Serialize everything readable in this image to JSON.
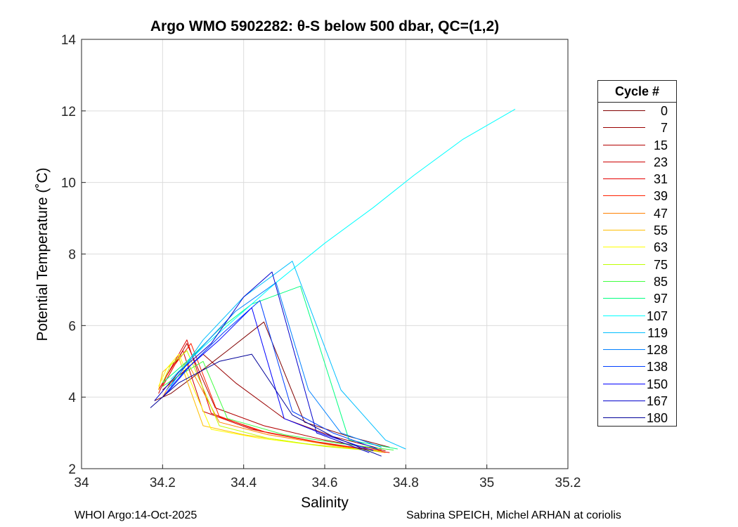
{
  "chart_data": {
    "type": "line",
    "title": "Argo WMO 5902282: θ-S below 500 dbar,  QC=(1,2)",
    "xlabel": "Salinity",
    "ylabel": "Potential Temperature (˚C)",
    "xlim": [
      34,
      35.2
    ],
    "ylim": [
      2,
      14
    ],
    "xticks": [
      34,
      34.2,
      34.4,
      34.6,
      34.8,
      35,
      35.2
    ],
    "xtick_labels": [
      "34",
      "34.2",
      "34.4",
      "34.6",
      "34.8",
      "35",
      "35.2"
    ],
    "yticks": [
      2,
      4,
      6,
      8,
      10,
      12,
      14
    ],
    "ytick_labels": [
      "2",
      "4",
      "6",
      "8",
      "10",
      "12",
      "14"
    ],
    "grid": true,
    "legend_position": "right",
    "legend_title": "Cycle #",
    "series": [
      {
        "name": "0",
        "color": "#800000",
        "x": [
          34.18,
          34.22,
          34.28,
          34.36,
          34.45,
          34.55,
          34.66,
          34.76
        ],
        "y": [
          3.9,
          4.1,
          4.6,
          5.3,
          6.1,
          3.3,
          2.9,
          2.6
        ]
      },
      {
        "name": "7",
        "color": "#990000",
        "x": [
          34.2,
          34.24,
          34.3,
          34.38,
          34.5,
          34.62,
          34.74
        ],
        "y": [
          4.2,
          4.6,
          5.2,
          4.4,
          3.4,
          2.9,
          2.55
        ]
      },
      {
        "name": "15",
        "color": "#b30000",
        "x": [
          34.2,
          34.22,
          34.26,
          34.33,
          34.45,
          34.6,
          34.75
        ],
        "y": [
          4.3,
          4.7,
          5.5,
          3.7,
          3.2,
          2.8,
          2.5
        ]
      },
      {
        "name": "23",
        "color": "#cc0000",
        "x": [
          34.19,
          34.21,
          34.25,
          34.3,
          34.42,
          34.58,
          34.73
        ],
        "y": [
          4.1,
          4.6,
          5.3,
          3.6,
          3.1,
          2.75,
          2.5
        ]
      },
      {
        "name": "31",
        "color": "#e60000",
        "x": [
          34.19,
          34.22,
          34.26,
          34.32,
          34.44,
          34.6,
          34.76
        ],
        "y": [
          4.2,
          4.8,
          5.6,
          3.55,
          3.05,
          2.7,
          2.45
        ]
      },
      {
        "name": "39",
        "color": "#ff2000",
        "x": [
          34.2,
          34.23,
          34.27,
          34.34,
          34.46,
          34.6,
          34.74
        ],
        "y": [
          4.3,
          4.9,
          5.5,
          3.45,
          3.0,
          2.7,
          2.5
        ]
      },
      {
        "name": "47",
        "color": "#ff8000",
        "x": [
          34.2,
          34.22,
          34.26,
          34.34,
          34.46,
          34.62,
          34.75
        ],
        "y": [
          4.0,
          4.4,
          5.0,
          3.3,
          2.95,
          2.65,
          2.45
        ]
      },
      {
        "name": "55",
        "color": "#ffbf00",
        "x": [
          34.19,
          34.2,
          34.24,
          34.3,
          34.4,
          34.55,
          34.72
        ],
        "y": [
          4.2,
          4.7,
          5.1,
          3.2,
          2.95,
          2.7,
          2.5
        ]
      },
      {
        "name": "63",
        "color": "#ffff00",
        "x": [
          34.19,
          34.21,
          34.24,
          34.32,
          34.44,
          34.58,
          34.73
        ],
        "y": [
          4.3,
          4.8,
          5.2,
          3.1,
          2.85,
          2.65,
          2.5
        ]
      },
      {
        "name": "75",
        "color": "#bfff00",
        "x": [
          34.2,
          34.22,
          34.26,
          34.34,
          34.46,
          34.6,
          34.74
        ],
        "y": [
          4.4,
          4.9,
          5.3,
          3.2,
          2.85,
          2.62,
          2.48
        ]
      },
      {
        "name": "85",
        "color": "#40ff40",
        "x": [
          34.2,
          34.24,
          34.3,
          34.36,
          34.5,
          34.64,
          34.77
        ],
        "y": [
          4.3,
          4.6,
          5.0,
          3.4,
          2.95,
          2.7,
          2.52
        ]
      },
      {
        "name": "97",
        "color": "#00ff80",
        "x": [
          34.2,
          34.26,
          34.34,
          34.42,
          34.54,
          34.66,
          34.78
        ],
        "y": [
          4.4,
          5.0,
          5.9,
          6.6,
          7.1,
          2.8,
          2.55
        ]
      },
      {
        "name": "107",
        "color": "#00ffff",
        "x": [
          34.22,
          34.3,
          34.38,
          34.48,
          34.6,
          34.72,
          34.82,
          34.94,
          35.07
        ],
        "y": [
          4.5,
          5.4,
          6.2,
          7.2,
          8.3,
          9.3,
          10.2,
          11.2,
          12.05
        ]
      },
      {
        "name": "119",
        "color": "#00bfff",
        "x": [
          34.22,
          34.3,
          34.4,
          34.52,
          34.64,
          34.75,
          34.8
        ],
        "y": [
          4.3,
          5.6,
          6.8,
          7.8,
          4.2,
          2.8,
          2.55
        ]
      },
      {
        "name": "128",
        "color": "#0080ff",
        "x": [
          34.21,
          34.28,
          34.38,
          34.48,
          34.56,
          34.64,
          34.74
        ],
        "y": [
          4.2,
          5.2,
          6.4,
          7.2,
          4.2,
          3.0,
          2.6
        ]
      },
      {
        "name": "138",
        "color": "#0040ff",
        "x": [
          34.21,
          34.27,
          34.35,
          34.44,
          34.52,
          34.62,
          34.73
        ],
        "y": [
          4.1,
          4.9,
          5.8,
          6.7,
          3.6,
          3.0,
          2.55
        ]
      },
      {
        "name": "150",
        "color": "#0000ff",
        "x": [
          34.2,
          34.26,
          34.34,
          34.42,
          34.5,
          34.6,
          34.72
        ],
        "y": [
          4.0,
          4.8,
          5.6,
          6.5,
          3.4,
          2.95,
          2.5
        ]
      },
      {
        "name": "167",
        "color": "#0000cc",
        "x": [
          34.18,
          34.24,
          34.32,
          34.4,
          34.47,
          34.58,
          34.71
        ],
        "y": [
          3.9,
          4.7,
          5.5,
          6.8,
          7.5,
          3.0,
          2.45
        ]
      },
      {
        "name": "180",
        "color": "#000099",
        "x": [
          34.17,
          34.24,
          34.34,
          34.42,
          34.52,
          34.62,
          34.74
        ],
        "y": [
          3.7,
          4.4,
          5.0,
          5.2,
          3.5,
          2.9,
          2.35
        ]
      }
    ]
  },
  "footer": {
    "left": "WHOI Argo:14-Oct-2025",
    "right": "Sabrina SPEICH, Michel ARHAN at coriolis"
  }
}
